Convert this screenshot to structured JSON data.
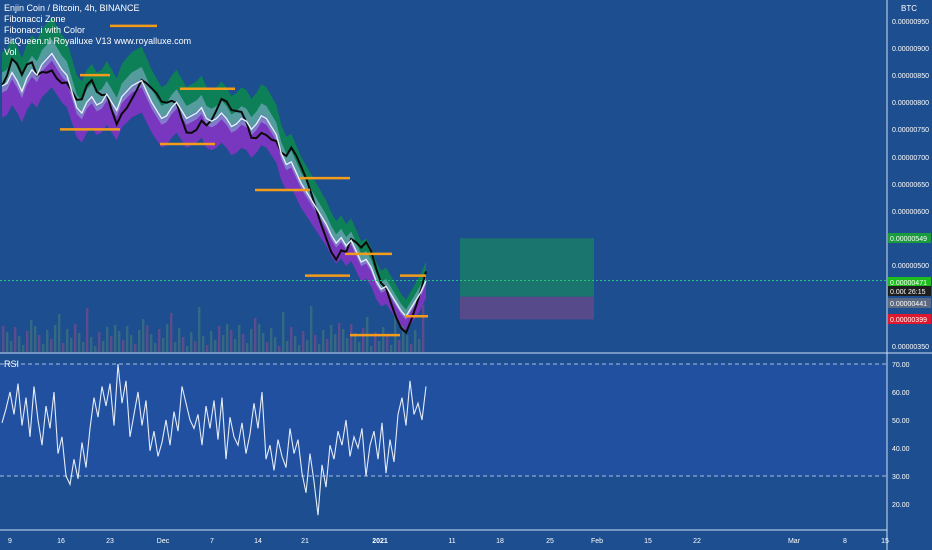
{
  "header": {
    "symbol_title": "Enjin Coin / Bitcoin, 4h, BINANCE",
    "indicators": [
      "Fibonacci Zone",
      "Fibonacci with Color",
      "BitQueen.nl Royalluxe V13 www.royalluxe.com",
      "Vol"
    ]
  },
  "axis": {
    "currency": "BTC",
    "price_ticks": [
      "0.00000950",
      "0.00000900",
      "0.00000850",
      "0.00000800",
      "0.00000750",
      "0.00000700",
      "0.00000650",
      "0.00000600",
      "0.00000500",
      "0.00000350"
    ],
    "price_tags": [
      {
        "text": "0.00000549",
        "color": "#1a9c3e"
      },
      {
        "text": "0.00000471",
        "color": "#1dbd1d"
      },
      {
        "text": "0.000",
        "color": "#1e1e1e"
      },
      {
        "text": "26:15",
        "color": "#1e1e1e"
      },
      {
        "text": "0.00000441",
        "color": "#5b6a80"
      },
      {
        "text": "0.00000399",
        "color": "#e0182d"
      }
    ],
    "rsi_ticks": [
      "70.00",
      "60.00",
      "50.00",
      "40.00",
      "30.00",
      "20.00"
    ],
    "x_ticks": [
      "9",
      "16",
      "23",
      "Dec",
      "7",
      "14",
      "21",
      "2021",
      "11",
      "18",
      "25",
      "Feb",
      "15",
      "22",
      "Mar",
      "8",
      "15"
    ]
  },
  "rsi": {
    "label": "RSI"
  },
  "colors": {
    "background": "#1d4e8f",
    "rsi_band": "#2150a0",
    "green_cloud": "#0b8a4e",
    "purple_cloud": "#8a32c8",
    "light_band": "#8fb2d8",
    "fib_orange": "#f39c1c",
    "black_line": "#0a0a0a",
    "white_line": "#e8eef8",
    "target_box": "#1a7a6a",
    "stop_box": "#5a4a8a"
  },
  "chart_data": [
    {
      "type": "line",
      "title": "Enjin Coin / Bitcoin, 4h, BINANCE",
      "ylabel": "BTC",
      "ylim": [
        3.4e-06,
        9.75e-06
      ],
      "x": [
        0,
        5,
        10,
        15,
        20,
        25,
        30,
        35,
        40,
        45,
        50,
        55,
        60,
        65,
        70,
        75,
        80,
        85,
        90,
        95,
        100,
        105,
        110,
        115,
        120,
        125,
        130,
        135,
        140,
        145,
        150,
        155,
        160,
        165,
        170,
        175,
        180,
        185,
        190,
        195,
        200,
        205,
        210,
        215,
        220,
        225,
        230,
        235,
        240,
        245,
        250,
        255,
        260,
        265,
        270,
        275,
        280,
        285,
        290,
        295,
        300,
        305,
        310,
        315,
        320,
        325,
        330,
        335,
        340,
        345,
        350,
        355,
        360,
        365,
        370,
        375,
        380,
        385,
        390,
        395,
        400,
        405,
        410,
        415,
        420,
        425
      ],
      "series": [
        {
          "values": [
            8.3e-06,
            8.35e-06,
            8.55e-06,
            8.4e-06,
            8.2e-06,
            8.45e-06,
            8.6e-06,
            8.5e-06,
            8.7e-06,
            8.8e-06,
            8.9e-06,
            8.75e-06,
            8.6e-06,
            8.5e-06,
            8.2e-06,
            7.9e-06,
            7.8e-06,
            8e-06,
            8.1e-06,
            7.95e-06,
            8e-06,
            8.15e-06,
            8e-06,
            7.85e-06,
            8.1e-06,
            8.2e-06,
            8.3e-06,
            8.35e-06,
            8.4e-06,
            8.2e-06,
            8e-06,
            7.85e-06,
            7.7e-06,
            7.75e-06,
            7.9e-06,
            8e-06,
            7.85e-06,
            7.7e-06,
            7.75e-06,
            7.8e-06,
            7.9e-06,
            7.7e-06,
            7.65e-06,
            7.7e-06,
            7.8e-06,
            7.7e-06,
            7.55e-06,
            7.6e-06,
            7.7e-06,
            7.65e-06,
            7.5e-06,
            7.6e-06,
            7.75e-06,
            7.7e-06,
            7.55e-06,
            7.4e-06,
            7.05e-06,
            6.85e-06,
            6.9e-06,
            6.7e-06,
            6.5e-06,
            6.35e-06,
            6.2e-06,
            6.05e-06,
            5.9e-06,
            5.75e-06,
            5.55e-06,
            5.4e-06,
            5.5e-06,
            5.35e-06,
            5.45e-06,
            5.25e-06,
            5.05e-06,
            5.1e-06,
            4.95e-06,
            4.7e-06,
            4.55e-06,
            4.6e-06,
            4.45e-06,
            4.3e-06,
            4.15e-06,
            4.05e-06,
            4.2e-06,
            4.35e-06,
            4.5e-06,
            4.71e-06
          ]
        }
      ]
    },
    {
      "type": "line",
      "title": "RSI",
      "ylim": [
        12,
        72
      ],
      "x": [
        0,
        4,
        8,
        12,
        16,
        20,
        24,
        28,
        32,
        36,
        40,
        44,
        48,
        52,
        56,
        60,
        64,
        68,
        72,
        76,
        80,
        84,
        88,
        92,
        96,
        100,
        104,
        108,
        112,
        116,
        120,
        124,
        128,
        132,
        136,
        140,
        144,
        148,
        152,
        156,
        160,
        164,
        168,
        172,
        176,
        180,
        184,
        188,
        192,
        196,
        200,
        204,
        208,
        212,
        216,
        220,
        224,
        228,
        232,
        236,
        240,
        244,
        248,
        252,
        256,
        260,
        264,
        268,
        272,
        276,
        280,
        284,
        288,
        292,
        296,
        300,
        304,
        308,
        312,
        316,
        320,
        324,
        328,
        332,
        336,
        340,
        344,
        348,
        352,
        356,
        360,
        364,
        368,
        372,
        376,
        380,
        384,
        388,
        392,
        396,
        400,
        404,
        408,
        412,
        416,
        420,
        424
      ],
      "series": [
        {
          "values": [
            49,
            54,
            60,
            52,
            63,
            48,
            58,
            44,
            62,
            50,
            41,
            55,
            47,
            60,
            38,
            44,
            30,
            27,
            36,
            29,
            42,
            33,
            47,
            58,
            51,
            62,
            55,
            63,
            48,
            70,
            56,
            64,
            44,
            52,
            60,
            48,
            57,
            39,
            46,
            37,
            42,
            50,
            41,
            53,
            46,
            62,
            56,
            50,
            47,
            52,
            41,
            55,
            47,
            57,
            43,
            58,
            36,
            51,
            44,
            41,
            49,
            38,
            45,
            56,
            47,
            60,
            36,
            41,
            32,
            43,
            37,
            33,
            47,
            38,
            43,
            31,
            24,
            38,
            28,
            16,
            34,
            26,
            41,
            36,
            46,
            41,
            50,
            37,
            44,
            40,
            47,
            30,
            41,
            46,
            36,
            49,
            31,
            43,
            35,
            52,
            58,
            48,
            64,
            52,
            56,
            50,
            62
          ]
        }
      ]
    }
  ]
}
